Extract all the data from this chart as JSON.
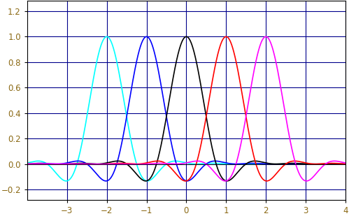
{
  "xlim": [
    -4,
    4
  ],
  "ylim": [
    -0.28,
    1.28
  ],
  "yticks": [
    -0.2,
    0.0,
    0.2,
    0.4,
    0.6,
    0.8,
    1.0,
    1.2
  ],
  "xticks": [
    -3,
    -2,
    -1,
    0,
    1,
    2,
    3,
    4
  ],
  "centers": [
    -2,
    -1,
    0,
    1,
    2
  ],
  "colors": [
    "cyan",
    "blue",
    "black",
    "red",
    "magenta"
  ],
  "rolloff": 0.5,
  "T": 0.75,
  "grid_color": "#00008B",
  "grid_linewidth": 0.8,
  "line_linewidth": 1.2,
  "figsize": [
    4.99,
    3.09
  ],
  "dpi": 100,
  "background_color": "white",
  "axes_edgecolor": "black",
  "tick_label_color": "#8B6914",
  "tick_fontsize": 8.5
}
